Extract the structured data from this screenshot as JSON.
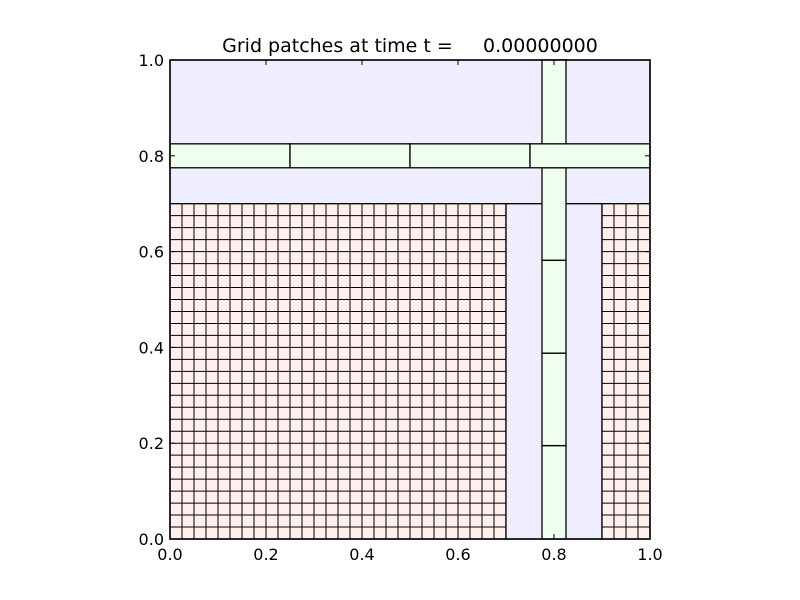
{
  "chart_data": {
    "type": "grid-patches",
    "title": "Grid patches at time t =     0.00000000",
    "xlim": [
      0.0,
      1.0
    ],
    "ylim": [
      0.0,
      1.0
    ],
    "xticks": [
      0.0,
      0.2,
      0.4,
      0.6,
      0.8,
      1.0
    ],
    "yticks": [
      0.0,
      0.2,
      0.4,
      0.6,
      0.8,
      1.0
    ],
    "xtick_labels": [
      "0.0",
      "0.2",
      "0.4",
      "0.6",
      "0.8",
      "1.0"
    ],
    "ytick_labels": [
      "0.0",
      "0.2",
      "0.4",
      "0.6",
      "0.8",
      "1.0"
    ],
    "grid": false,
    "colors": {
      "fine_fill": "#fff0ee",
      "medium_fill": "#eeeeff",
      "coarse_fill": "#eeffee",
      "edge": "#000000"
    },
    "patches": [
      {
        "level": "medium",
        "x": [
          0.0,
          1.0
        ],
        "y": [
          0.7,
          1.0
        ],
        "nx": 1,
        "ny": 1
      },
      {
        "level": "fine",
        "x": [
          0.0,
          0.7
        ],
        "y": [
          0.0,
          0.7
        ],
        "nx": 28,
        "ny": 28
      },
      {
        "level": "medium",
        "x": [
          0.7,
          0.9
        ],
        "y": [
          0.0,
          0.7
        ],
        "nx": 1,
        "ny": 1
      },
      {
        "level": "fine",
        "x": [
          0.9,
          1.0
        ],
        "y": [
          0.0,
          0.7
        ],
        "nx": 4,
        "ny": 28
      },
      {
        "level": "coarse",
        "x": [
          0.775,
          0.825
        ],
        "y": [
          0.0,
          0.195
        ],
        "nx": 1,
        "ny": 1
      },
      {
        "level": "coarse",
        "x": [
          0.775,
          0.825
        ],
        "y": [
          0.195,
          0.388
        ],
        "nx": 1,
        "ny": 1
      },
      {
        "level": "coarse",
        "x": [
          0.775,
          0.825
        ],
        "y": [
          0.388,
          0.582
        ],
        "nx": 1,
        "ny": 1
      },
      {
        "level": "coarse",
        "x": [
          0.775,
          0.825
        ],
        "y": [
          0.582,
          0.775
        ],
        "nx": 1,
        "ny": 1
      },
      {
        "level": "coarse",
        "x": [
          0.0,
          0.25
        ],
        "y": [
          0.775,
          0.825
        ],
        "nx": 1,
        "ny": 1
      },
      {
        "level": "coarse",
        "x": [
          0.25,
          0.5
        ],
        "y": [
          0.775,
          0.825
        ],
        "nx": 1,
        "ny": 1
      },
      {
        "level": "coarse",
        "x": [
          0.5,
          0.75
        ],
        "y": [
          0.775,
          0.825
        ],
        "nx": 1,
        "ny": 1
      },
      {
        "level": "coarse",
        "x": [
          0.75,
          1.0
        ],
        "y": [
          0.775,
          0.825
        ],
        "nx": 1,
        "ny": 1
      },
      {
        "level": "coarse",
        "x": [
          0.775,
          0.825
        ],
        "y": [
          0.825,
          1.0
        ],
        "nx": 1,
        "ny": 1
      }
    ]
  }
}
